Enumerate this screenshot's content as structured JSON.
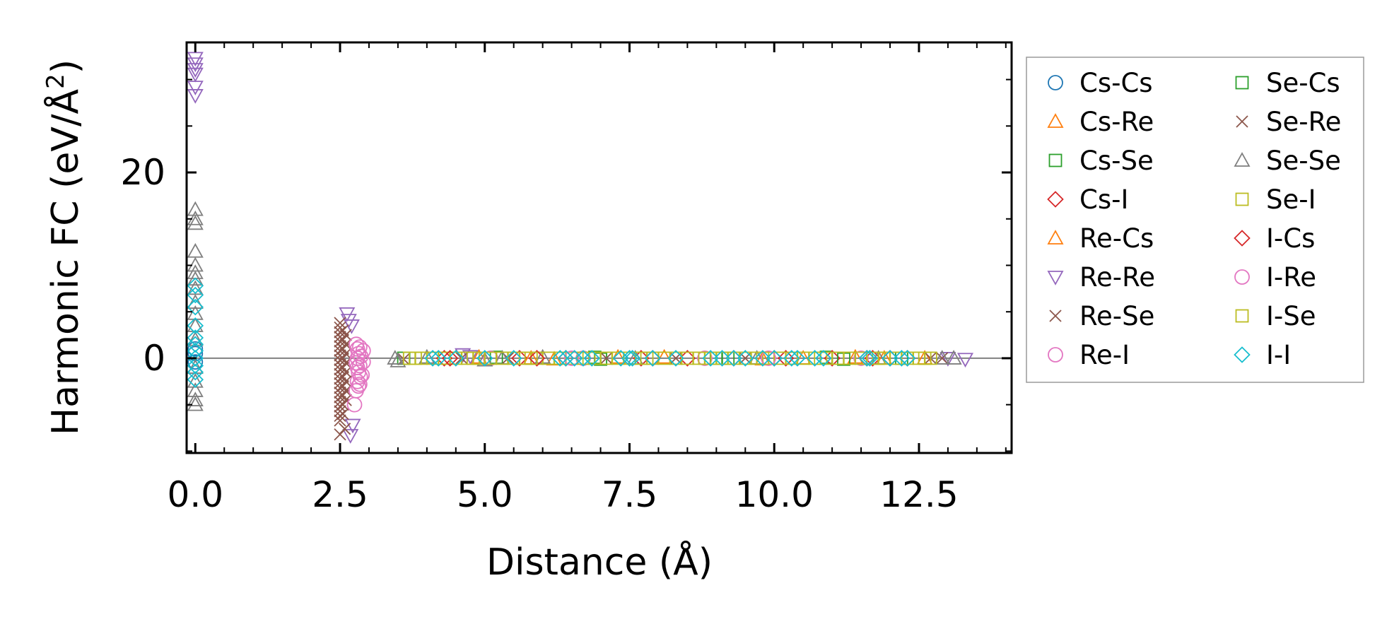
{
  "chart_data": {
    "type": "scatter",
    "title": "",
    "xlabel": "Distance (Å)",
    "ylabel_main": "Harmonic FC (eV/Å",
    "ylabel_sup": "2",
    "ylabel_close": ")",
    "xlim": [
      -0.15,
      14.1
    ],
    "ylim": [
      -10.2,
      34.0
    ],
    "xticks": [
      0.0,
      2.5,
      5.0,
      7.5,
      10.0,
      12.5
    ],
    "xtick_labels": [
      "0.0",
      "2.5",
      "5.0",
      "7.5",
      "10.0",
      "12.5"
    ],
    "yticks": [
      0,
      20
    ],
    "ytick_labels": [
      "0",
      "20"
    ],
    "zero_line": true,
    "legend_position": "outside-right",
    "legend_columns": 2,
    "series": [
      {
        "name": "Cs-Cs",
        "color": "#1f77b4",
        "marker": "circle",
        "points": [
          [
            0,
            0.5
          ],
          [
            0,
            -0.4
          ],
          [
            0,
            1.0
          ]
        ]
      },
      {
        "name": "Cs-Re",
        "color": "#ff7f0e",
        "marker": "triangle-up",
        "points": [
          [
            4.9,
            0.1
          ],
          [
            6.2,
            -0.1
          ],
          [
            8.1,
            0.1
          ],
          [
            9.8,
            -0.1
          ],
          [
            11.4,
            0.1
          ],
          [
            12.6,
            0.0
          ]
        ]
      },
      {
        "name": "Cs-Se",
        "color": "#2ca02c",
        "marker": "square",
        "points": [
          [
            3.6,
            0.0
          ],
          [
            5.2,
            0.1
          ],
          [
            7.0,
            -0.1
          ],
          [
            9.0,
            0.0
          ],
          [
            10.9,
            0.1
          ],
          [
            12.2,
            0.0
          ]
        ]
      },
      {
        "name": "Cs-I",
        "color": "#d62728",
        "marker": "diamond",
        "points": [
          [
            4.3,
            0.0
          ],
          [
            5.6,
            0.0
          ],
          [
            6.4,
            0.0
          ],
          [
            7.7,
            0.0
          ],
          [
            8.5,
            0.0
          ],
          [
            9.3,
            0.0
          ],
          [
            10.2,
            0.0
          ],
          [
            11.0,
            0.0
          ],
          [
            11.7,
            0.0
          ],
          [
            12.3,
            0.0
          ]
        ]
      },
      {
        "name": "Re-Cs",
        "color": "#ff7f0e",
        "marker": "triangle-up",
        "points": [
          [
            5.8,
            0.0
          ],
          [
            7.3,
            0.1
          ],
          [
            10.5,
            0.0
          ],
          [
            11.9,
            0.0
          ]
        ]
      },
      {
        "name": "Re-Re",
        "color": "#9467bd",
        "marker": "triangle-down",
        "points": [
          [
            0,
            32.3
          ],
          [
            0,
            31.7
          ],
          [
            0,
            31.1
          ],
          [
            0,
            30.6
          ],
          [
            0,
            29.2
          ],
          [
            0,
            28.3
          ],
          [
            2.62,
            4.8
          ],
          [
            2.65,
            4.1
          ],
          [
            2.7,
            3.5
          ],
          [
            2.72,
            -7.2
          ],
          [
            2.68,
            -8.3
          ],
          [
            4.62,
            0.4
          ],
          [
            4.75,
            0.2
          ],
          [
            13.3,
            -0.1
          ],
          [
            13.0,
            0.0
          ]
        ]
      },
      {
        "name": "Re-Se",
        "color": "#8c564b",
        "marker": "x",
        "points": [
          [
            2.5,
            3.8
          ],
          [
            2.5,
            3.3
          ],
          [
            2.5,
            2.8
          ],
          [
            2.5,
            2.3
          ],
          [
            2.5,
            1.8
          ],
          [
            2.5,
            1.3
          ],
          [
            2.5,
            0.8
          ],
          [
            2.5,
            0.3
          ],
          [
            2.5,
            -0.2
          ],
          [
            2.5,
            -0.7
          ],
          [
            2.5,
            -1.2
          ],
          [
            2.5,
            -1.7
          ],
          [
            2.5,
            -2.2
          ],
          [
            2.5,
            -2.7
          ],
          [
            2.5,
            -3.2
          ],
          [
            2.5,
            -3.7
          ],
          [
            2.5,
            -4.2
          ],
          [
            2.5,
            -4.7
          ],
          [
            2.5,
            -5.2
          ],
          [
            2.5,
            -5.7
          ],
          [
            2.5,
            -6.2
          ],
          [
            2.5,
            -6.7
          ],
          [
            2.55,
            3.0
          ],
          [
            2.55,
            2.0
          ],
          [
            2.55,
            1.0
          ],
          [
            2.55,
            0.0
          ],
          [
            2.55,
            -1.0
          ],
          [
            2.55,
            -2.0
          ],
          [
            2.55,
            -3.0
          ],
          [
            2.55,
            -4.0
          ],
          [
            2.55,
            -5.0
          ],
          [
            2.55,
            -6.0
          ],
          [
            2.6,
            2.5
          ],
          [
            2.6,
            1.5
          ],
          [
            2.6,
            0.5
          ],
          [
            2.6,
            -0.5
          ],
          [
            2.6,
            -1.5
          ],
          [
            2.6,
            -2.5
          ],
          [
            2.6,
            -3.5
          ],
          [
            2.6,
            -4.5
          ],
          [
            2.58,
            -7.6
          ],
          [
            2.5,
            -8.2
          ],
          [
            4.6,
            0.0
          ],
          [
            7.1,
            0.0
          ],
          [
            9.5,
            0.0
          ],
          [
            12.9,
            0.0
          ]
        ]
      },
      {
        "name": "Re-I",
        "color": "#e377c2",
        "marker": "circle",
        "points": [
          [
            2.78,
            1.5
          ],
          [
            2.8,
            1.0
          ],
          [
            2.82,
            0.5
          ],
          [
            2.8,
            0.0
          ],
          [
            2.78,
            -0.5
          ],
          [
            2.8,
            -1.0
          ],
          [
            2.82,
            -1.5
          ],
          [
            2.85,
            -2.0
          ],
          [
            2.8,
            -2.5
          ],
          [
            2.82,
            -3.0
          ],
          [
            2.78,
            -3.5
          ],
          [
            2.75,
            -5.0
          ],
          [
            2.9,
            0.8
          ],
          [
            2.9,
            -0.4
          ],
          [
            5.1,
            0.0
          ],
          [
            6.7,
            0.0
          ],
          [
            8.8,
            0.0
          ],
          [
            11.5,
            0.0
          ]
        ]
      },
      {
        "name": "Se-Cs",
        "color": "#2ca02c",
        "marker": "square",
        "points": [
          [
            6.9,
            0.1
          ],
          [
            9.2,
            0.0
          ],
          [
            11.2,
            -0.1
          ]
        ]
      },
      {
        "name": "Se-Re",
        "color": "#8c564b",
        "marker": "x",
        "points": [
          [
            3.6,
            -0.1
          ],
          [
            5.4,
            0.0
          ],
          [
            8.3,
            0.0
          ],
          [
            12.7,
            0.0
          ]
        ]
      },
      {
        "name": "Se-Se",
        "color": "#7f7f7f",
        "marker": "triangle-up",
        "points": [
          [
            0,
            16.0
          ],
          [
            0,
            15.0
          ],
          [
            0,
            14.5
          ],
          [
            0,
            11.5
          ],
          [
            0,
            10.0
          ],
          [
            0,
            9.2
          ],
          [
            0,
            8.5
          ],
          [
            0,
            7.5
          ],
          [
            0,
            6.0
          ],
          [
            0,
            4.8
          ],
          [
            0,
            3.5
          ],
          [
            0,
            2.0
          ],
          [
            0,
            -1.0
          ],
          [
            0,
            -2.5
          ],
          [
            0,
            -3.5
          ],
          [
            0,
            -4.5
          ],
          [
            0,
            -5.0
          ],
          [
            3.45,
            0.0
          ],
          [
            3.5,
            -0.3
          ],
          [
            4.0,
            0.1
          ],
          [
            5.0,
            -0.2
          ],
          [
            5.3,
            0.0
          ],
          [
            6.0,
            0.1
          ],
          [
            7.6,
            0.0
          ],
          [
            9.7,
            0.0
          ],
          [
            11.8,
            0.0
          ],
          [
            12.9,
            0.0
          ],
          [
            13.1,
            0.0
          ]
        ]
      },
      {
        "name": "Se-I",
        "color": "#bcbd22",
        "marker": "square",
        "points": [
          [
            3.7,
            0.0
          ],
          [
            3.9,
            0.0
          ],
          [
            4.1,
            0.0
          ],
          [
            4.3,
            0.0
          ],
          [
            4.5,
            0.0
          ],
          [
            4.7,
            0.0
          ],
          [
            4.9,
            0.0
          ],
          [
            5.1,
            0.0
          ],
          [
            5.3,
            0.0
          ],
          [
            5.5,
            0.0
          ],
          [
            5.7,
            0.0
          ],
          [
            5.9,
            0.0
          ],
          [
            6.1,
            0.0
          ],
          [
            6.3,
            0.0
          ],
          [
            6.5,
            0.0
          ],
          [
            6.7,
            0.0
          ],
          [
            6.9,
            0.0
          ],
          [
            7.1,
            0.0
          ],
          [
            7.3,
            0.0
          ],
          [
            7.5,
            0.0
          ],
          [
            7.7,
            0.0
          ],
          [
            7.9,
            0.0
          ],
          [
            8.1,
            0.0
          ],
          [
            8.3,
            0.0
          ],
          [
            8.5,
            0.0
          ],
          [
            8.7,
            0.0
          ],
          [
            8.9,
            0.0
          ],
          [
            9.1,
            0.0
          ],
          [
            9.3,
            0.0
          ],
          [
            9.5,
            0.0
          ],
          [
            9.7,
            0.0
          ],
          [
            9.9,
            0.0
          ],
          [
            10.1,
            0.0
          ],
          [
            10.3,
            0.0
          ],
          [
            10.5,
            0.0
          ],
          [
            10.7,
            0.0
          ],
          [
            10.9,
            0.0
          ],
          [
            11.1,
            0.0
          ],
          [
            11.3,
            0.0
          ],
          [
            11.5,
            0.0
          ],
          [
            11.7,
            0.0
          ],
          [
            11.9,
            0.0
          ],
          [
            12.1,
            0.0
          ],
          [
            12.3,
            0.0
          ],
          [
            12.5,
            0.0
          ],
          [
            12.7,
            0.0
          ]
        ]
      },
      {
        "name": "I-Cs",
        "color": "#d62728",
        "marker": "diamond",
        "points": [
          [
            4.4,
            0.0
          ],
          [
            5.9,
            0.0
          ],
          [
            7.9,
            0.0
          ],
          [
            10.0,
            0.0
          ],
          [
            11.6,
            0.0
          ],
          [
            12.0,
            0.0
          ]
        ]
      },
      {
        "name": "I-Re",
        "color": "#e377c2",
        "marker": "circle",
        "points": [
          [
            2.84,
            1.2
          ],
          [
            2.86,
            0.2
          ],
          [
            2.84,
            -0.8
          ],
          [
            2.88,
            -1.8
          ],
          [
            2.84,
            -2.8
          ],
          [
            6.5,
            0.0
          ],
          [
            9.9,
            0.0
          ]
        ]
      },
      {
        "name": "I-Se",
        "color": "#bcbd22",
        "marker": "square",
        "points": [
          [
            3.8,
            0.0
          ],
          [
            4.8,
            0.0
          ],
          [
            5.8,
            0.0
          ],
          [
            6.8,
            0.0
          ],
          [
            7.8,
            0.0
          ],
          [
            8.8,
            0.0
          ],
          [
            9.8,
            0.0
          ],
          [
            10.8,
            0.0
          ],
          [
            11.8,
            0.0
          ],
          [
            12.6,
            0.0
          ]
        ]
      },
      {
        "name": "I-I",
        "color": "#17becf",
        "marker": "diamond",
        "points": [
          [
            0,
            7.8
          ],
          [
            0,
            6.8
          ],
          [
            0,
            5.5
          ],
          [
            0,
            3.5
          ],
          [
            0,
            2.2
          ],
          [
            0,
            1.5
          ],
          [
            0,
            0.8
          ],
          [
            0,
            0.0
          ],
          [
            0,
            -0.8
          ],
          [
            0,
            -1.5
          ],
          [
            0,
            -2.3
          ],
          [
            4.1,
            0.0
          ],
          [
            4.2,
            0.0
          ],
          [
            4.5,
            0.0
          ],
          [
            5.0,
            0.0
          ],
          [
            5.5,
            0.0
          ],
          [
            6.3,
            0.0
          ],
          [
            6.4,
            0.0
          ],
          [
            6.55,
            0.0
          ],
          [
            6.7,
            0.0
          ],
          [
            6.85,
            0.0
          ],
          [
            7.35,
            0.0
          ],
          [
            7.5,
            0.0
          ],
          [
            7.55,
            0.0
          ],
          [
            7.9,
            0.0
          ],
          [
            8.3,
            0.0
          ],
          [
            8.9,
            0.0
          ],
          [
            9.1,
            0.0
          ],
          [
            9.3,
            0.0
          ],
          [
            9.5,
            0.0
          ],
          [
            9.8,
            0.0
          ],
          [
            10.0,
            0.0
          ],
          [
            10.3,
            0.0
          ],
          [
            10.4,
            0.0
          ],
          [
            10.7,
            0.0
          ],
          [
            10.85,
            0.0
          ],
          [
            11.6,
            0.0
          ],
          [
            11.65,
            0.0
          ],
          [
            12.0,
            0.0
          ],
          [
            12.2,
            0.0
          ],
          [
            12.3,
            0.0
          ]
        ]
      }
    ]
  }
}
